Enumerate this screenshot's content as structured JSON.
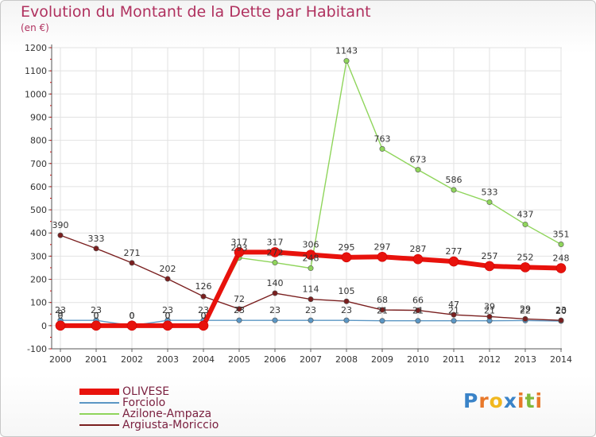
{
  "title": "Evolution du Montant de la Dette par Habitant",
  "subtitle": "(en €)",
  "logo_text": "Proxiti",
  "chart_data": {
    "type": "line",
    "x": [
      "2000",
      "2001",
      "2002",
      "2003",
      "2004",
      "2005",
      "2006",
      "2007",
      "2008",
      "2009",
      "2010",
      "2011",
      "2012",
      "2013",
      "2014"
    ],
    "ylim": [
      -100,
      1200
    ],
    "yticks": [
      -100,
      0,
      100,
      200,
      300,
      400,
      500,
      600,
      700,
      800,
      900,
      1000,
      1100,
      1200
    ],
    "grid": true,
    "legend_position": "bottom-left",
    "series": [
      {
        "name": "OLIVESE",
        "color": "#e8120c",
        "values": [
          0,
          0,
          0,
          0,
          0,
          317,
          317,
          306,
          295,
          297,
          287,
          277,
          257,
          252,
          248
        ],
        "labels": [
          "0",
          "0",
          "0",
          "0",
          "0",
          "317",
          "317",
          "306",
          "295",
          "297",
          "287",
          "277",
          "257",
          "252",
          "248"
        ]
      },
      {
        "name": "Forciolo",
        "color": "#5b96c4",
        "values": [
          23,
          23,
          0,
          23,
          23,
          23,
          23,
          23,
          23,
          21,
          21,
          21,
          21,
          22,
          20
        ],
        "labels": [
          "23",
          "23",
          "0",
          "23",
          "23",
          "23",
          "23",
          "23",
          "23",
          "21",
          "21",
          "21",
          "21",
          "22",
          "20"
        ]
      },
      {
        "name": "Azilone-Ampaza",
        "color": "#8fd55b",
        "values": [
          9,
          0,
          0,
          0,
          0,
          293,
          272,
          248,
          1143,
          763,
          673,
          586,
          533,
          437,
          351
        ],
        "labels": [
          "9",
          "0",
          "0",
          "0",
          "0",
          "293",
          "272",
          "248",
          "1143",
          "763",
          "673",
          "586",
          "533",
          "437",
          "351"
        ]
      },
      {
        "name": "Argiusta-Moriccio",
        "color": "#7a1f1f",
        "values": [
          390,
          333,
          271,
          202,
          126,
          72,
          140,
          114,
          105,
          68,
          66,
          47,
          39,
          29,
          23
        ],
        "labels": [
          "390",
          "333",
          "271",
          "202",
          "126",
          "72",
          "140",
          "114",
          "105",
          "68",
          "66",
          "47",
          "39",
          "29",
          "23"
        ]
      }
    ]
  }
}
